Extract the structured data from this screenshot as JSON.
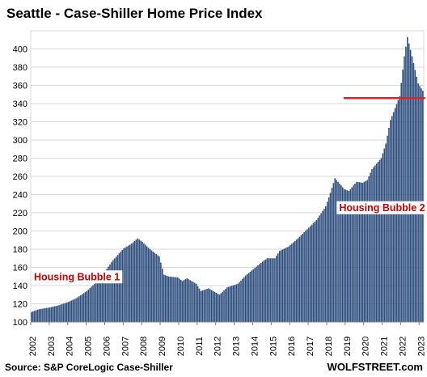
{
  "chart_data": {
    "type": "bar",
    "title": "Seattle - Case-Shiller Home Price Index",
    "source": "Source: S&P CoreLogic Case-Shiller",
    "brand": "WOLFSTREET.com",
    "xlabel": "",
    "ylabel": "",
    "ylim": [
      100,
      420
    ],
    "yticks": [
      100,
      120,
      140,
      160,
      180,
      200,
      220,
      240,
      260,
      280,
      300,
      320,
      340,
      360,
      380,
      400
    ],
    "xticks": [
      "2002",
      "2003",
      "2004",
      "2005",
      "2006",
      "2007",
      "2008",
      "2009",
      "2010",
      "2011",
      "2012",
      "2013",
      "2014",
      "2015",
      "2016",
      "2017",
      "2018",
      "2019",
      "2020",
      "2021",
      "2022",
      "2023"
    ],
    "start": "2002-01",
    "frequency": "monthly",
    "grid": true,
    "legend": "none",
    "bar_color": "#2f4f7f",
    "anchors": [
      [
        "2002-01",
        111
      ],
      [
        "2002-06",
        114
      ],
      [
        "2003-01",
        116
      ],
      [
        "2003-06",
        118
      ],
      [
        "2004-01",
        122
      ],
      [
        "2004-06",
        126
      ],
      [
        "2005-01",
        134
      ],
      [
        "2005-06",
        142
      ],
      [
        "2006-01",
        156
      ],
      [
        "2006-06",
        168
      ],
      [
        "2007-01",
        181
      ],
      [
        "2007-06",
        186
      ],
      [
        "2007-10",
        192
      ],
      [
        "2008-01",
        188
      ],
      [
        "2008-06",
        180
      ],
      [
        "2008-12",
        172
      ],
      [
        "2009-03",
        152
      ],
      [
        "2009-06",
        150
      ],
      [
        "2009-12",
        149
      ],
      [
        "2010-03",
        145
      ],
      [
        "2010-06",
        148
      ],
      [
        "2010-12",
        142
      ],
      [
        "2011-03",
        134
      ],
      [
        "2011-08",
        137
      ],
      [
        "2012-03",
        130
      ],
      [
        "2012-08",
        138
      ],
      [
        "2013-03",
        142
      ],
      [
        "2013-08",
        151
      ],
      [
        "2014-01",
        158
      ],
      [
        "2014-06",
        165
      ],
      [
        "2014-10",
        170
      ],
      [
        "2015-03",
        170
      ],
      [
        "2015-06",
        178
      ],
      [
        "2015-12",
        183
      ],
      [
        "2016-06",
        192
      ],
      [
        "2016-12",
        202
      ],
      [
        "2017-06",
        212
      ],
      [
        "2017-12",
        227
      ],
      [
        "2018-03",
        242
      ],
      [
        "2018-06",
        258
      ],
      [
        "2018-12",
        246
      ],
      [
        "2019-03",
        244
      ],
      [
        "2019-08",
        254
      ],
      [
        "2019-12",
        253
      ],
      [
        "2020-03",
        256
      ],
      [
        "2020-06",
        268
      ],
      [
        "2020-12",
        280
      ],
      [
        "2021-03",
        296
      ],
      [
        "2021-06",
        322
      ],
      [
        "2021-12",
        348
      ],
      [
        "2022-03",
        392
      ],
      [
        "2022-05",
        413
      ],
      [
        "2022-08",
        392
      ],
      [
        "2022-12",
        362
      ],
      [
        "2023-03",
        354
      ]
    ],
    "annotations": [
      {
        "text": "Housing Bubble 1",
        "color": "#cc0000",
        "at": [
          "2002-01",
          146
        ]
      },
      {
        "text": "Housing Bubble 2",
        "color": "#cc0000",
        "at": [
          "2018-07",
          222
        ]
      }
    ],
    "reference_line": {
      "value": 346,
      "from": "2018-12",
      "to": "2023-05",
      "color": "#e0202a"
    }
  }
}
